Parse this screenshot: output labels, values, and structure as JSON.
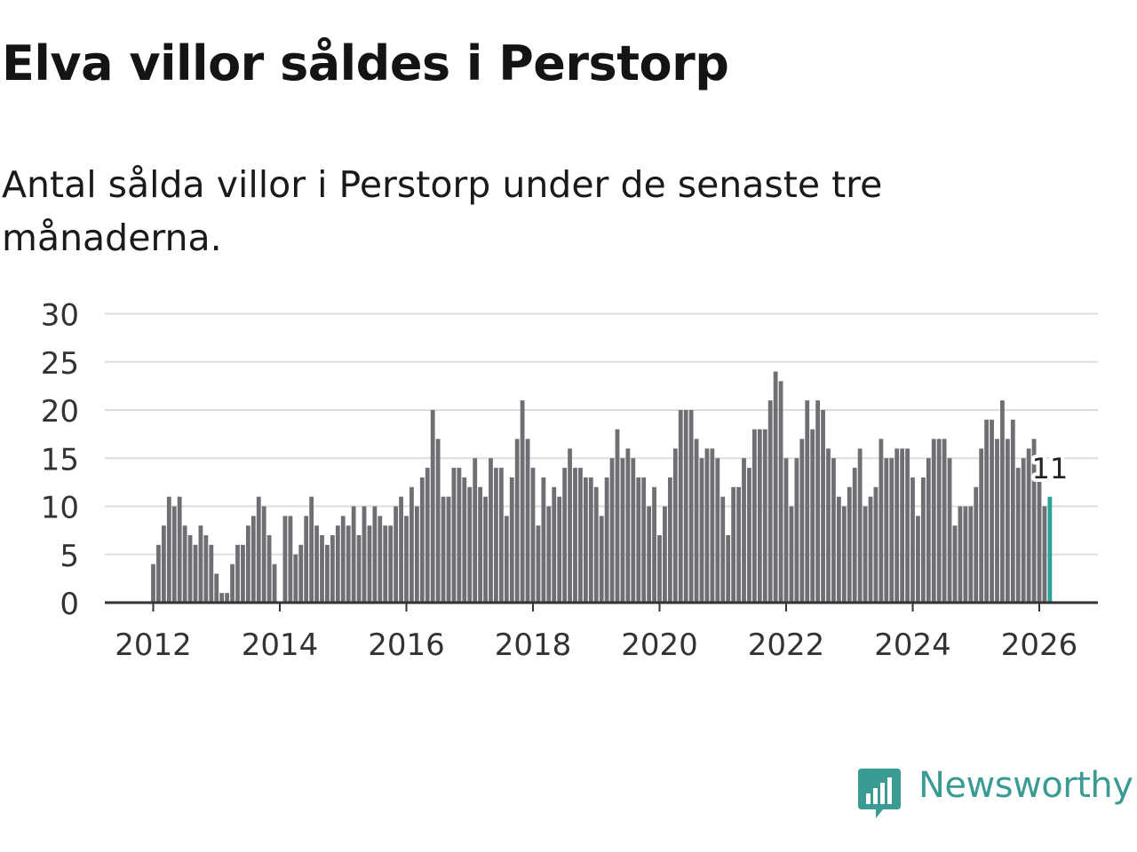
{
  "header": {
    "title": "Elva villor såldes i Perstorp",
    "subtitle": "Antal sålda villor i Perstorp under de senaste tre månaderna."
  },
  "chart_data": {
    "type": "bar",
    "title": "Elva villor såldes i Perstorp",
    "subtitle": "Antal sålda villor i Perstorp under de senaste tre månaderna.",
    "xlabel": "",
    "ylabel": "",
    "ylim": [
      0,
      30
    ],
    "yticks": [
      0,
      5,
      10,
      15,
      20,
      25,
      30
    ],
    "xticks": [
      "2012",
      "2014",
      "2016",
      "2018",
      "2020",
      "2022",
      "2024",
      "2026"
    ],
    "start": "2012-01",
    "frequency": "monthly",
    "grid": true,
    "bar_color": "#6f6e72",
    "highlight_color": "#2aa29a",
    "highlight_label": "11",
    "values": [
      4,
      6,
      8,
      11,
      10,
      11,
      8,
      7,
      6,
      8,
      7,
      6,
      3,
      1,
      1,
      4,
      6,
      6,
      8,
      9,
      11,
      10,
      7,
      4,
      0,
      9,
      9,
      5,
      6,
      9,
      11,
      8,
      7,
      6,
      7,
      8,
      9,
      8,
      10,
      7,
      10,
      8,
      10,
      9,
      8,
      8,
      10,
      11,
      9,
      12,
      10,
      13,
      14,
      20,
      17,
      11,
      11,
      14,
      14,
      13,
      12,
      15,
      12,
      11,
      15,
      14,
      14,
      9,
      13,
      17,
      21,
      17,
      14,
      8,
      13,
      10,
      12,
      11,
      14,
      16,
      14,
      14,
      13,
      13,
      12,
      9,
      13,
      15,
      18,
      15,
      16,
      15,
      13,
      13,
      10,
      12,
      7,
      10,
      13,
      16,
      20,
      20,
      20,
      17,
      15,
      16,
      16,
      15,
      11,
      7,
      12,
      12,
      15,
      14,
      18,
      18,
      18,
      21,
      24,
      23,
      15,
      10,
      15,
      17,
      21,
      18,
      21,
      20,
      16,
      15,
      11,
      10,
      12,
      14,
      16,
      10,
      11,
      12,
      17,
      15,
      15,
      16,
      16,
      16,
      13,
      9,
      13,
      15,
      17,
      17,
      17,
      15,
      8,
      10,
      10,
      10,
      12,
      16,
      19,
      19,
      17,
      21,
      17,
      19,
      14,
      15,
      16,
      17,
      15,
      10,
      11
    ]
  },
  "brand": {
    "name": "Newsworthy",
    "color": "#3a9b93"
  }
}
